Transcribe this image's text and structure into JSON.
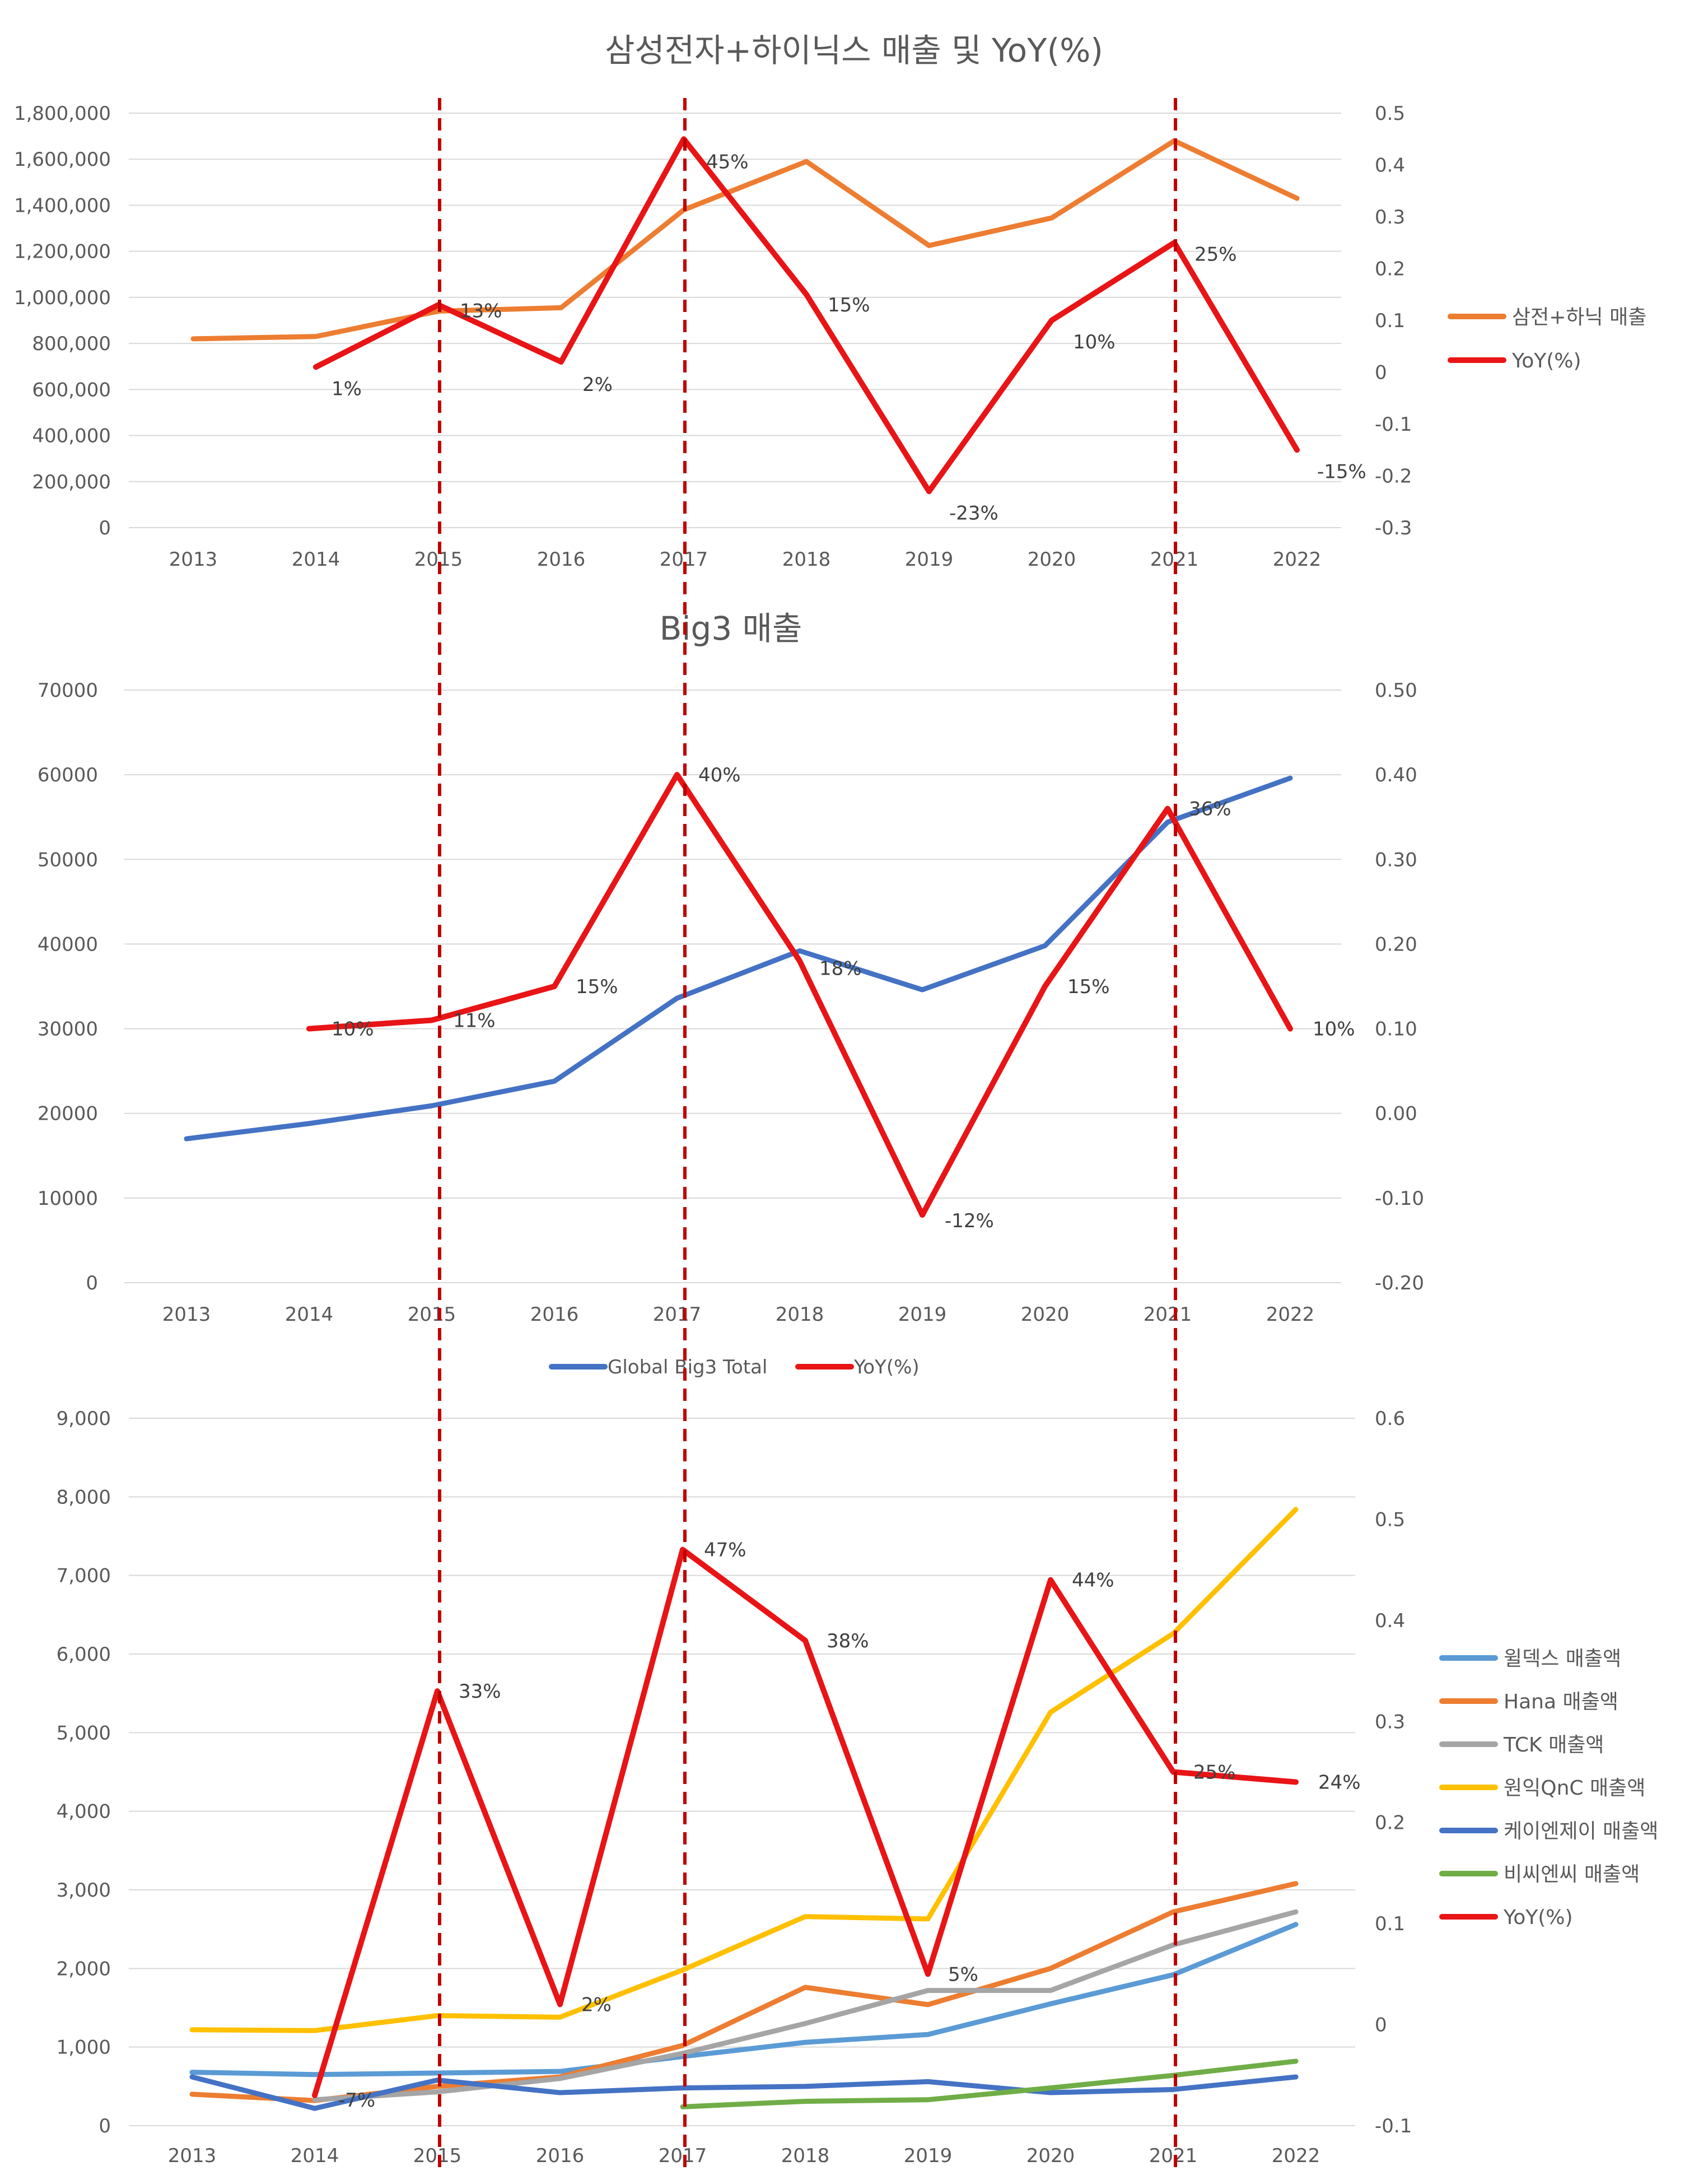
{
  "colors": {
    "orange": "#ED7D31",
    "red": "#E81416",
    "blue": "#4472C4",
    "lightblue": "#5B9BD5",
    "gray": "#A5A5A5",
    "gold": "#FFC000",
    "green": "#70AD47",
    "dashed_marker": "#C00000"
  },
  "marked_years": [
    2015,
    2017,
    2021
  ],
  "chart_data": [
    {
      "type": "line",
      "title": "삼성전자+하이닉스 매출 및 YoY(%)",
      "x": [
        2013,
        2014,
        2015,
        2016,
        2017,
        2018,
        2019,
        2020,
        2021,
        2022
      ],
      "ylim_left": [
        0,
        1800000
      ],
      "yticks_left": [
        "1,800,000",
        "1,600,000",
        "1,400,000",
        "1,200,000",
        "1,000,000",
        "800,000",
        "600,000",
        "400,000",
        "200,000",
        "0"
      ],
      "ylim_right": [
        -0.3,
        0.5
      ],
      "yticks_right": [
        "0.5",
        "0.4",
        "0.3",
        "0.2",
        "0.1",
        "0",
        "-0.1",
        "-0.2",
        "-0.3"
      ],
      "legend_position": "right",
      "series": [
        {
          "name": "삼전+하닉 매출",
          "axis": "left",
          "color": "#ED7D31",
          "values": [
            820000,
            830000,
            940000,
            955000,
            1380000,
            1590000,
            1225000,
            1345000,
            1680000,
            1430000
          ]
        },
        {
          "name": "YoY(%)",
          "axis": "right",
          "color": "#E81416",
          "values": [
            null,
            0.01,
            0.13,
            0.02,
            0.45,
            0.15,
            -0.23,
            0.1,
            0.25,
            -0.15
          ],
          "labels": [
            null,
            "1%",
            "13%",
            "2%",
            "45%",
            "15%",
            "-23%",
            "10%",
            "25%",
            "-15%"
          ]
        }
      ]
    },
    {
      "type": "line",
      "title": "Big3 매출",
      "x": [
        2013,
        2014,
        2015,
        2016,
        2017,
        2018,
        2019,
        2020,
        2021,
        2022
      ],
      "ylim_left": [
        0,
        70000
      ],
      "yticks_left": [
        "70000",
        "60000",
        "50000",
        "40000",
        "30000",
        "20000",
        "10000",
        "0"
      ],
      "ylim_right": [
        -0.2,
        0.5
      ],
      "yticks_right": [
        "0.50",
        "0.40",
        "0.30",
        "0.20",
        "0.10",
        "0.00",
        "-0.10",
        "-0.20"
      ],
      "legend_position": "bottom",
      "series": [
        {
          "name": "Global Big3 Total",
          "axis": "left",
          "color": "#4472C4",
          "values": [
            17000,
            18800,
            20900,
            23800,
            33600,
            39200,
            34600,
            39800,
            54400,
            59600
          ]
        },
        {
          "name": "YoY(%)",
          "axis": "right",
          "color": "#E81416",
          "values": [
            null,
            0.1,
            0.11,
            0.15,
            0.4,
            0.18,
            -0.12,
            0.15,
            0.36,
            0.1
          ],
          "labels": [
            null,
            "10%",
            "11%",
            "15%",
            "40%",
            "18%",
            "-12%",
            "15%",
            "36%",
            "10%"
          ]
        }
      ]
    },
    {
      "type": "line",
      "title": "",
      "x": [
        2013,
        2014,
        2015,
        2016,
        2017,
        2018,
        2019,
        2020,
        2021,
        2022
      ],
      "ylim_left": [
        0,
        9000
      ],
      "yticks_left": [
        "9,000",
        "8,000",
        "7,000",
        "6,000",
        "5,000",
        "4,000",
        "3,000",
        "2,000",
        "1,000",
        "0"
      ],
      "ylim_right": [
        -0.1,
        0.6
      ],
      "yticks_right": [
        "0.6",
        "0.5",
        "0.4",
        "0.3",
        "0.2",
        "0.1",
        "0",
        "-0.1"
      ],
      "legend_position": "right",
      "series": [
        {
          "name": "윌덱스 매출액",
          "axis": "left",
          "color": "#5B9BD5",
          "values": [
            680,
            650,
            670,
            690,
            880,
            1060,
            1160,
            1550,
            1920,
            2560
          ]
        },
        {
          "name": "Hana 매출액",
          "axis": "left",
          "color": "#ED7D31",
          "values": [
            400,
            320,
            500,
            620,
            1020,
            1760,
            1540,
            2000,
            2720,
            3080
          ]
        },
        {
          "name": "TCK 매출액",
          "axis": "left",
          "color": "#A5A5A5",
          "values": [
            null,
            330,
            430,
            600,
            920,
            1300,
            1720,
            1720,
            2300,
            2720
          ]
        },
        {
          "name": "원익QnC 매출액",
          "axis": "left",
          "color": "#FFC000",
          "values": [
            1220,
            1210,
            1400,
            1380,
            1980,
            2660,
            2630,
            5260,
            6260,
            7840
          ]
        },
        {
          "name": "케이엔제이 매출액",
          "axis": "left",
          "color": "#4472C4",
          "values": [
            620,
            220,
            580,
            420,
            480,
            500,
            560,
            420,
            460,
            620
          ]
        },
        {
          "name": "비씨엔씨 매출액",
          "axis": "left",
          "color": "#70AD47",
          "values": [
            null,
            null,
            null,
            null,
            240,
            310,
            330,
            480,
            640,
            820
          ]
        },
        {
          "name": "YoY(%)",
          "axis": "right",
          "color": "#E81416",
          "values": [
            null,
            -0.07,
            0.33,
            0.02,
            0.47,
            0.38,
            0.05,
            0.44,
            0.25,
            0.24
          ],
          "labels": [
            null,
            "-7%",
            "33%",
            "2%",
            "47%",
            "38%",
            "5%",
            "44%",
            "25%",
            "24%"
          ]
        }
      ]
    }
  ]
}
